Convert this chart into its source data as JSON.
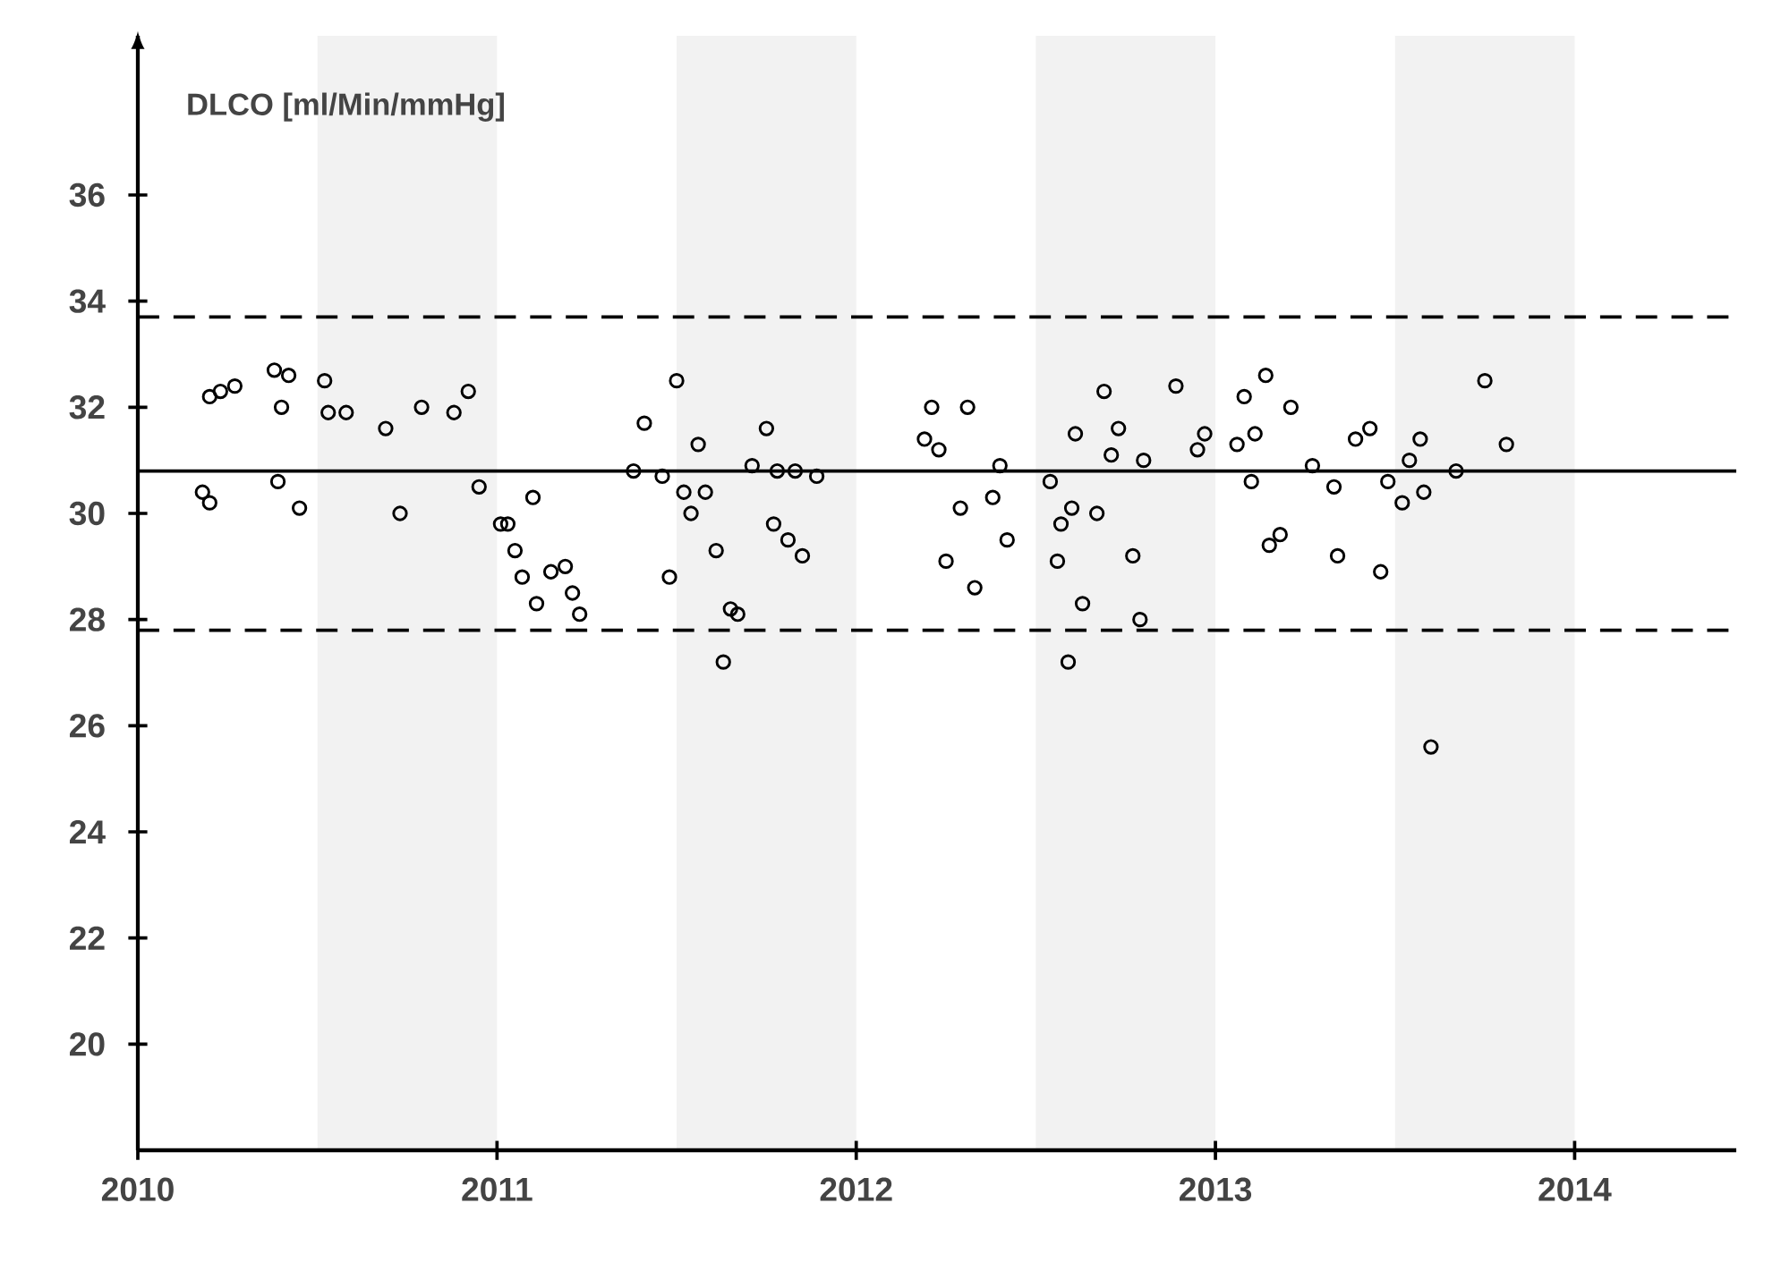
{
  "chart_data": {
    "type": "scatter",
    "ylabel": "DLCO [ml/Min/mmHg]",
    "xlim": [
      2010,
      2014.45
    ],
    "ylim": [
      18,
      39
    ],
    "xticks": [
      2010,
      2011,
      2012,
      2013,
      2014
    ],
    "yticks": [
      20,
      22,
      24,
      26,
      28,
      30,
      32,
      34,
      36
    ],
    "marker": "circle",
    "bands": [
      {
        "axis": "x",
        "from": 2010.5,
        "to": 2011,
        "color": "#f2f2f2"
      },
      {
        "axis": "x",
        "from": 2011.5,
        "to": 2012,
        "color": "#f2f2f2"
      },
      {
        "axis": "x",
        "from": 2012.5,
        "to": 2013,
        "color": "#f2f2f2"
      },
      {
        "axis": "x",
        "from": 2013.5,
        "to": 2014,
        "color": "#f2f2f2"
      }
    ],
    "ref_lines": [
      {
        "axis": "y",
        "value": 30.8,
        "color": "#000000",
        "line_style": "solid"
      },
      {
        "axis": "y",
        "value": 33.7,
        "color": "#000000",
        "line_style": "dashed"
      },
      {
        "axis": "y",
        "value": 27.8,
        "color": "#000000",
        "line_style": "dashed"
      }
    ],
    "series": [
      {
        "color": "#000000",
        "x": [
          2010.2,
          2010.23,
          2010.27,
          2010.38,
          2010.42,
          2010.4,
          2010.52,
          2010.53,
          2010.58,
          2010.69,
          2010.79,
          2010.88,
          2010.92,
          2010.18,
          2010.2,
          2010.39,
          2010.45,
          2010.73,
          2010.95,
          2011.01,
          2011.03,
          2011.05,
          2011.07,
          2011.1,
          2011.11,
          2011.15,
          2011.19,
          2011.21,
          2011.23,
          2011.38,
          2011.41,
          2011.46,
          2011.48,
          2011.5,
          2011.52,
          2011.54,
          2011.56,
          2011.58,
          2011.61,
          2011.63,
          2011.65,
          2011.67,
          2011.71,
          2011.75,
          2011.77,
          2011.78,
          2011.81,
          2011.83,
          2011.85,
          2011.89,
          2012.19,
          2012.21,
          2012.23,
          2012.25,
          2012.29,
          2012.31,
          2012.33,
          2012.38,
          2012.4,
          2012.42,
          2012.54,
          2012.56,
          2012.57,
          2012.59,
          2012.6,
          2012.61,
          2012.63,
          2012.67,
          2012.69,
          2012.71,
          2012.73,
          2012.77,
          2012.79,
          2012.8,
          2012.89,
          2012.95,
          2012.97,
          2013.06,
          2013.08,
          2013.1,
          2013.11,
          2013.14,
          2013.15,
          2013.18,
          2013.21,
          2013.27,
          2013.33,
          2013.34,
          2013.39,
          2013.43,
          2013.46,
          2013.48,
          2013.52,
          2013.54,
          2013.57,
          2013.58,
          2013.6,
          2013.67,
          2013.75,
          2013.81
        ],
        "values": [
          32.2,
          32.3,
          32.4,
          32.7,
          32.6,
          32.0,
          32.5,
          31.9,
          31.9,
          31.6,
          32.0,
          31.9,
          32.3,
          30.4,
          30.2,
          30.6,
          30.1,
          30.0,
          30.5,
          29.8,
          29.8,
          29.3,
          28.8,
          30.3,
          28.3,
          28.9,
          29.0,
          28.5,
          28.1,
          30.8,
          31.7,
          30.7,
          28.8,
          32.5,
          30.4,
          30.0,
          31.3,
          30.4,
          29.3,
          27.2,
          28.2,
          28.1,
          30.9,
          31.6,
          29.8,
          30.8,
          29.5,
          30.8,
          29.2,
          30.7,
          31.4,
          32.0,
          31.2,
          29.1,
          30.1,
          32.0,
          28.6,
          30.3,
          30.9,
          29.5,
          30.6,
          29.1,
          29.8,
          27.2,
          30.1,
          31.5,
          28.3,
          30.0,
          32.3,
          31.1,
          31.6,
          29.2,
          28.0,
          31.0,
          32.4,
          31.2,
          31.5,
          31.3,
          32.2,
          30.6,
          31.5,
          32.6,
          29.4,
          29.6,
          32.0,
          30.9,
          30.5,
          29.2,
          31.4,
          31.6,
          28.9,
          30.6,
          30.2,
          31.0,
          31.4,
          30.4,
          25.6,
          30.8,
          32.5,
          31.3
        ]
      }
    ]
  }
}
